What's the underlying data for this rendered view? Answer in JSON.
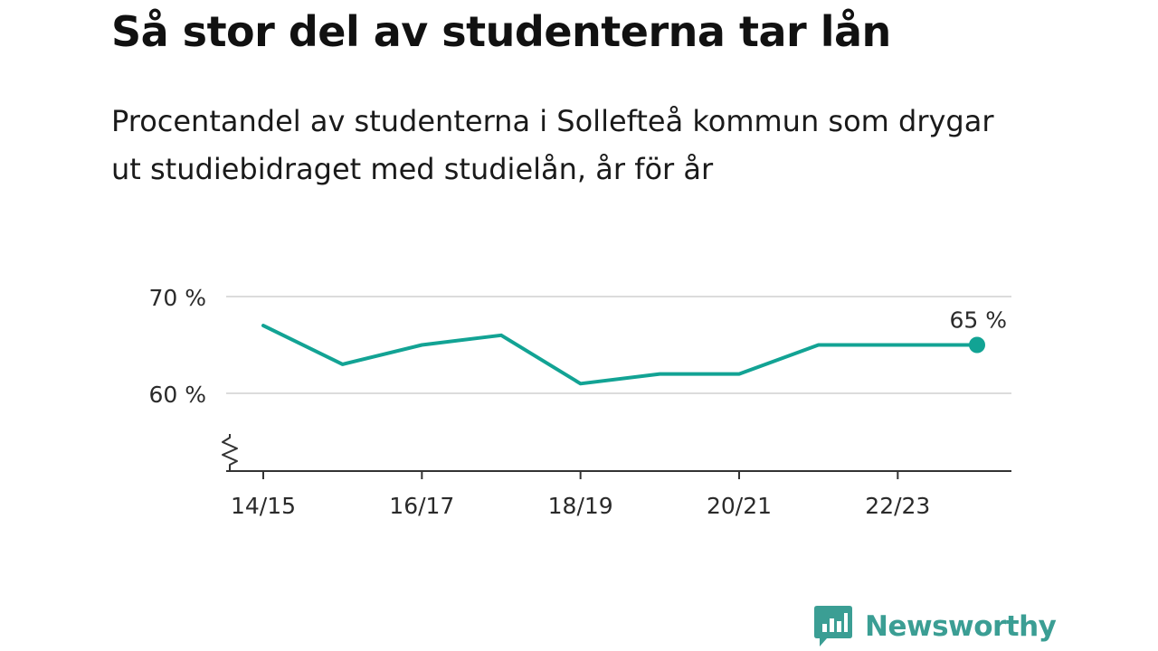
{
  "title": "Så stor del av studenterna tar lån",
  "subtitle": "Procentandel av studenterna i Sollefteå kommun som drygar ut studiebidraget med studielån, år för år",
  "brand": {
    "name": "Newsworthy",
    "color": "#3b9e94",
    "icon": "newsworthy-logo-icon"
  },
  "chart_data": {
    "type": "line",
    "x": [
      "14/15",
      "15/16",
      "16/17",
      "17/18",
      "18/19",
      "19/20",
      "20/21",
      "21/22",
      "22/23",
      "23/24"
    ],
    "tick_labels": [
      "14/15",
      "16/17",
      "18/19",
      "20/21",
      "22/23"
    ],
    "series": [
      {
        "values": [
          67,
          63,
          65,
          66,
          61,
          62,
          62,
          65,
          65,
          65
        ],
        "color": "#12a394"
      }
    ],
    "y_ticks": [
      {
        "value": 60,
        "label": "60 %"
      },
      {
        "value": 70,
        "label": "70 %"
      }
    ],
    "ylim": [
      52,
      70
    ],
    "y_axis_break": true,
    "grid": true,
    "annotation": {
      "index": 9,
      "label": "65 %"
    }
  }
}
